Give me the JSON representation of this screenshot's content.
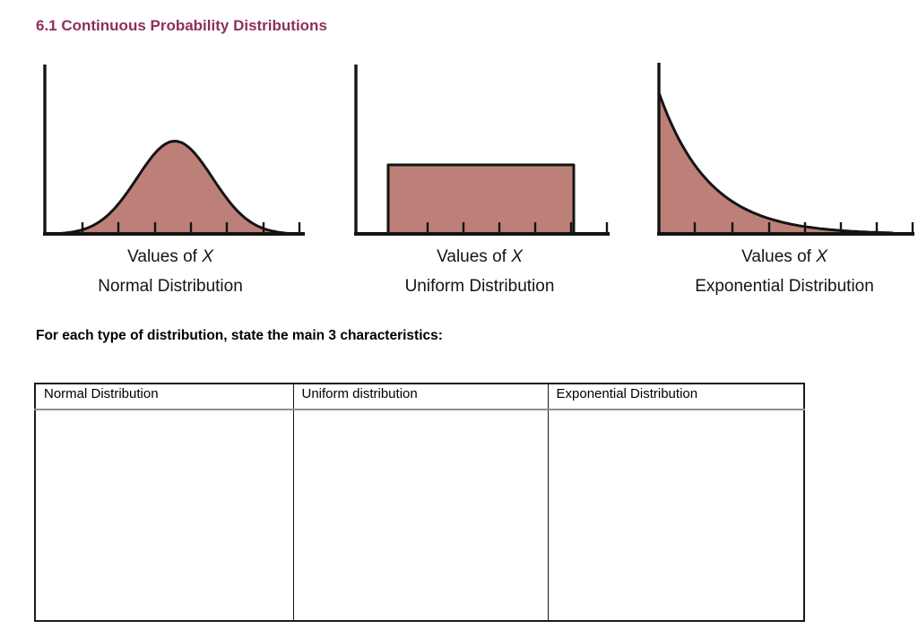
{
  "page": {
    "title": "6.1 Continuous Probability Distributions",
    "title_color": "#8e2f5c",
    "instruction": "For each type of distribution, state the main 3 characteristics:"
  },
  "charts": [
    {
      "type": "normal",
      "caption_prefix": "Values of ",
      "caption_x": "X",
      "caption_name": "Normal Distribution",
      "fill": "#bd8078",
      "stroke": "#141414"
    },
    {
      "type": "uniform",
      "caption_prefix": "Values of ",
      "caption_x": "X",
      "caption_name": "Uniform Distribution",
      "fill": "#bd8078",
      "stroke": "#141414"
    },
    {
      "type": "exponential",
      "caption_prefix": "Values of ",
      "caption_x": "X",
      "caption_name": "Exponential Distribution",
      "fill": "#bd8078",
      "stroke": "#141414"
    }
  ],
  "chart_data": [
    {
      "type": "area",
      "subtype": "normal-density",
      "title": "Normal Distribution",
      "xlabel": "Values of X",
      "ylabel": "",
      "tick_count": 7,
      "tick_labels": [],
      "axis_numeric_labels_shown": false,
      "description": "Symmetric bell-shaped probability density curve, area under curve shaded"
    },
    {
      "type": "area",
      "subtype": "uniform-density",
      "title": "Uniform Distribution",
      "xlabel": "Values of X",
      "ylabel": "",
      "tick_count": 6,
      "tick_labels": [],
      "axis_numeric_labels_shown": false,
      "description": "Flat rectangular probability density over an interval, rectangle shaded"
    },
    {
      "type": "area",
      "subtype": "exponential-density",
      "title": "Exponential Distribution",
      "xlabel": "Values of X",
      "ylabel": "",
      "tick_count": 7,
      "tick_labels": [],
      "axis_numeric_labels_shown": false,
      "description": "Monotonically decaying probability density starting high at zero, area under curve shaded"
    }
  ],
  "table": {
    "headers": [
      "Normal Distribution",
      "Uniform distribution",
      "Exponential Distribution"
    ],
    "rows": [
      {
        "normal": "",
        "uniform": "",
        "exponential": ""
      }
    ]
  }
}
